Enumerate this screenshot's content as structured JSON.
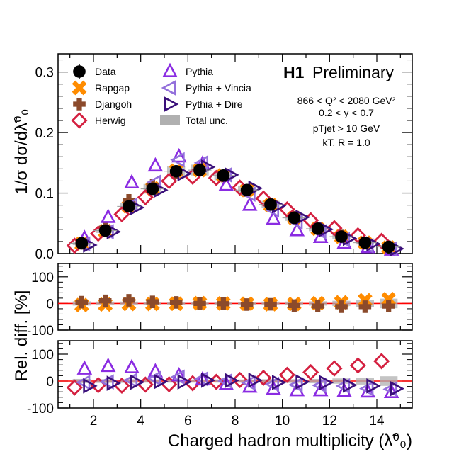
{
  "title": {
    "experiment": "H1",
    "status": "Preliminary"
  },
  "info_lines": [
    "866 < Q² < 2080 GeV²",
    "0.2 < y < 0.7",
    "pTjet > 10 GeV",
    "kT, R = 1.0"
  ],
  "legend": [
    {
      "key": "data",
      "label": "Data"
    },
    {
      "key": "rapgap",
      "label": "Rapgap"
    },
    {
      "key": "djangoh",
      "label": "Djangoh"
    },
    {
      "key": "herwig",
      "label": "Herwig"
    },
    {
      "key": "pythia",
      "label": "Pythia"
    },
    {
      "key": "vincia",
      "label": "Pythia + Vincia"
    },
    {
      "key": "dire",
      "label": "Pythia + Dire"
    },
    {
      "key": "totunc",
      "label": "Total unc."
    }
  ],
  "colors": {
    "data": "#000000",
    "rapgap": "#ff8c00",
    "djangoh": "#8b4a2b",
    "herwig": "#d42040",
    "pythia": "#8a2be2",
    "vincia": "#9370db",
    "dire": "#3a0f7a",
    "totunc": "#b0b0b0",
    "zero_line": "#ff0000"
  },
  "chart_data": {
    "type": "scatter",
    "xlabel": "Charged hadron multiplicity (λ̃⁰₀)",
    "x": [
      1.5,
      2.5,
      3.5,
      4.5,
      5.5,
      6.5,
      7.5,
      8.5,
      9.5,
      10.5,
      11.5,
      12.5,
      13.5,
      14.5
    ],
    "xlim": [
      0.5,
      15.5
    ],
    "xticks": [
      2,
      4,
      6,
      8,
      10,
      12,
      14
    ],
    "panels": [
      {
        "name": "distribution",
        "ylabel": "1/σ dσ/dλ̃⁰₀",
        "ylim": [
          0,
          0.33
        ],
        "yticks": [
          0,
          0.1,
          0.2,
          0.3
        ],
        "ytick_labels": [
          "0.0",
          "0.1",
          "0.2",
          "0.3"
        ],
        "series": [
          {
            "name": "Data",
            "key": "data",
            "values": [
              0.017,
              0.038,
              0.078,
              0.107,
              0.136,
              0.138,
              0.129,
              0.105,
              0.081,
              0.059,
              0.041,
              0.028,
              0.018,
              0.011
            ],
            "unc": [
              0.003,
              0.004,
              0.006,
              0.008,
              0.009,
              0.009,
              0.008,
              0.007,
              0.006,
              0.005,
              0.004,
              0.004,
              0.003,
              0.003
            ]
          },
          {
            "name": "Rapgap",
            "key": "rapgap",
            "values": [
              0.016,
              0.037,
              0.078,
              0.108,
              0.137,
              0.138,
              0.129,
              0.105,
              0.08,
              0.059,
              0.041,
              0.028,
              0.018,
              0.01
            ]
          },
          {
            "name": "Djangoh",
            "key": "djangoh",
            "values": [
              0.017,
              0.042,
              0.088,
              0.113,
              0.134,
              0.139,
              0.128,
              0.104,
              0.081,
              0.06,
              0.042,
              0.029,
              0.017,
              0.011
            ]
          },
          {
            "name": "Herwig",
            "key": "herwig",
            "values": [
              0.013,
              0.033,
              0.065,
              0.093,
              0.12,
              0.127,
              0.125,
              0.109,
              0.091,
              0.073,
              0.055,
              0.042,
              0.03,
              0.021
            ]
          },
          {
            "name": "Pythia",
            "key": "pythia",
            "values": [
              0.025,
              0.06,
              0.117,
              0.145,
              0.16,
              0.148,
              0.113,
              0.08,
              0.057,
              0.038,
              0.027,
              0.017,
              0.01,
              0.006
            ]
          },
          {
            "name": "Pythia + Vincia",
            "key": "vincia",
            "values": [
              0.016,
              0.036,
              0.08,
              0.118,
              0.155,
              0.15,
              0.13,
              0.098,
              0.072,
              0.052,
              0.036,
              0.023,
              0.013,
              0.008
            ]
          },
          {
            "name": "Pythia + Dire",
            "key": "dire",
            "values": [
              0.014,
              0.036,
              0.076,
              0.105,
              0.132,
              0.143,
              0.13,
              0.108,
              0.079,
              0.06,
              0.04,
              0.025,
              0.016,
              0.008
            ]
          },
          {
            "name": "Total unc.",
            "key": "totunc",
            "values": [
              0.017,
              0.038,
              0.078,
              0.107,
              0.136,
              0.138,
              0.129,
              0.105,
              0.081,
              0.059,
              0.041,
              0.028,
              0.018,
              0.011
            ]
          }
        ]
      },
      {
        "name": "ratio-1",
        "ylabel": "Rel. diff. [%]",
        "ylim": [
          -100,
          150
        ],
        "yticks": [
          -100,
          0,
          100
        ],
        "ytick_labels": [
          "-100",
          "0",
          "100"
        ],
        "series": [
          {
            "name": "Rapgap",
            "key": "rapgap",
            "values": [
              -6,
              -4,
              -2,
              -2,
              -1,
              1,
              0,
              -1,
              -3,
              -2,
              1,
              4,
              12,
              16
            ]
          },
          {
            "name": "Djangoh",
            "key": "djangoh",
            "values": [
              5,
              10,
              12,
              6,
              4,
              0,
              -1,
              -4,
              -3,
              -8,
              -10,
              -12,
              -12,
              -10
            ]
          },
          {
            "name": "Total unc.",
            "key": "totunc",
            "values": [
              8,
              7,
              7,
              6,
              6,
              6,
              6,
              6,
              7,
              7,
              8,
              10,
              13,
              18
            ]
          }
        ]
      },
      {
        "name": "ratio-2",
        "ylim": [
          -100,
          150
        ],
        "yticks": [
          -100,
          0,
          100
        ],
        "ytick_labels": [
          "-100",
          "0",
          "100"
        ],
        "series": [
          {
            "name": "Herwig",
            "key": "herwig",
            "values": [
              -24,
              -15,
              -17,
              -13,
              -12,
              -8,
              -3,
              4,
              12,
              23,
              33,
              47,
              58,
              74
            ]
          },
          {
            "name": "Pythia",
            "key": "pythia",
            "values": [
              45,
              55,
              50,
              35,
              20,
              5,
              -12,
              -22,
              -30,
              -35,
              -35,
              -38,
              -40,
              -42
            ]
          },
          {
            "name": "Pythia + Vincia",
            "key": "vincia",
            "values": [
              -5,
              -3,
              3,
              10,
              15,
              8,
              0,
              -7,
              -12,
              -14,
              -16,
              -18,
              -28,
              -30
            ]
          },
          {
            "name": "Pythia + Dire",
            "key": "dire",
            "values": [
              -18,
              -8,
              -4,
              -2,
              -3,
              3,
              2,
              3,
              -5,
              -3,
              -6,
              -15,
              -18,
              -28
            ]
          },
          {
            "name": "Total unc.",
            "key": "totunc",
            "values": [
              8,
              7,
              7,
              6,
              6,
              6,
              6,
              6,
              7,
              7,
              8,
              10,
              13,
              18
            ]
          }
        ]
      }
    ]
  }
}
